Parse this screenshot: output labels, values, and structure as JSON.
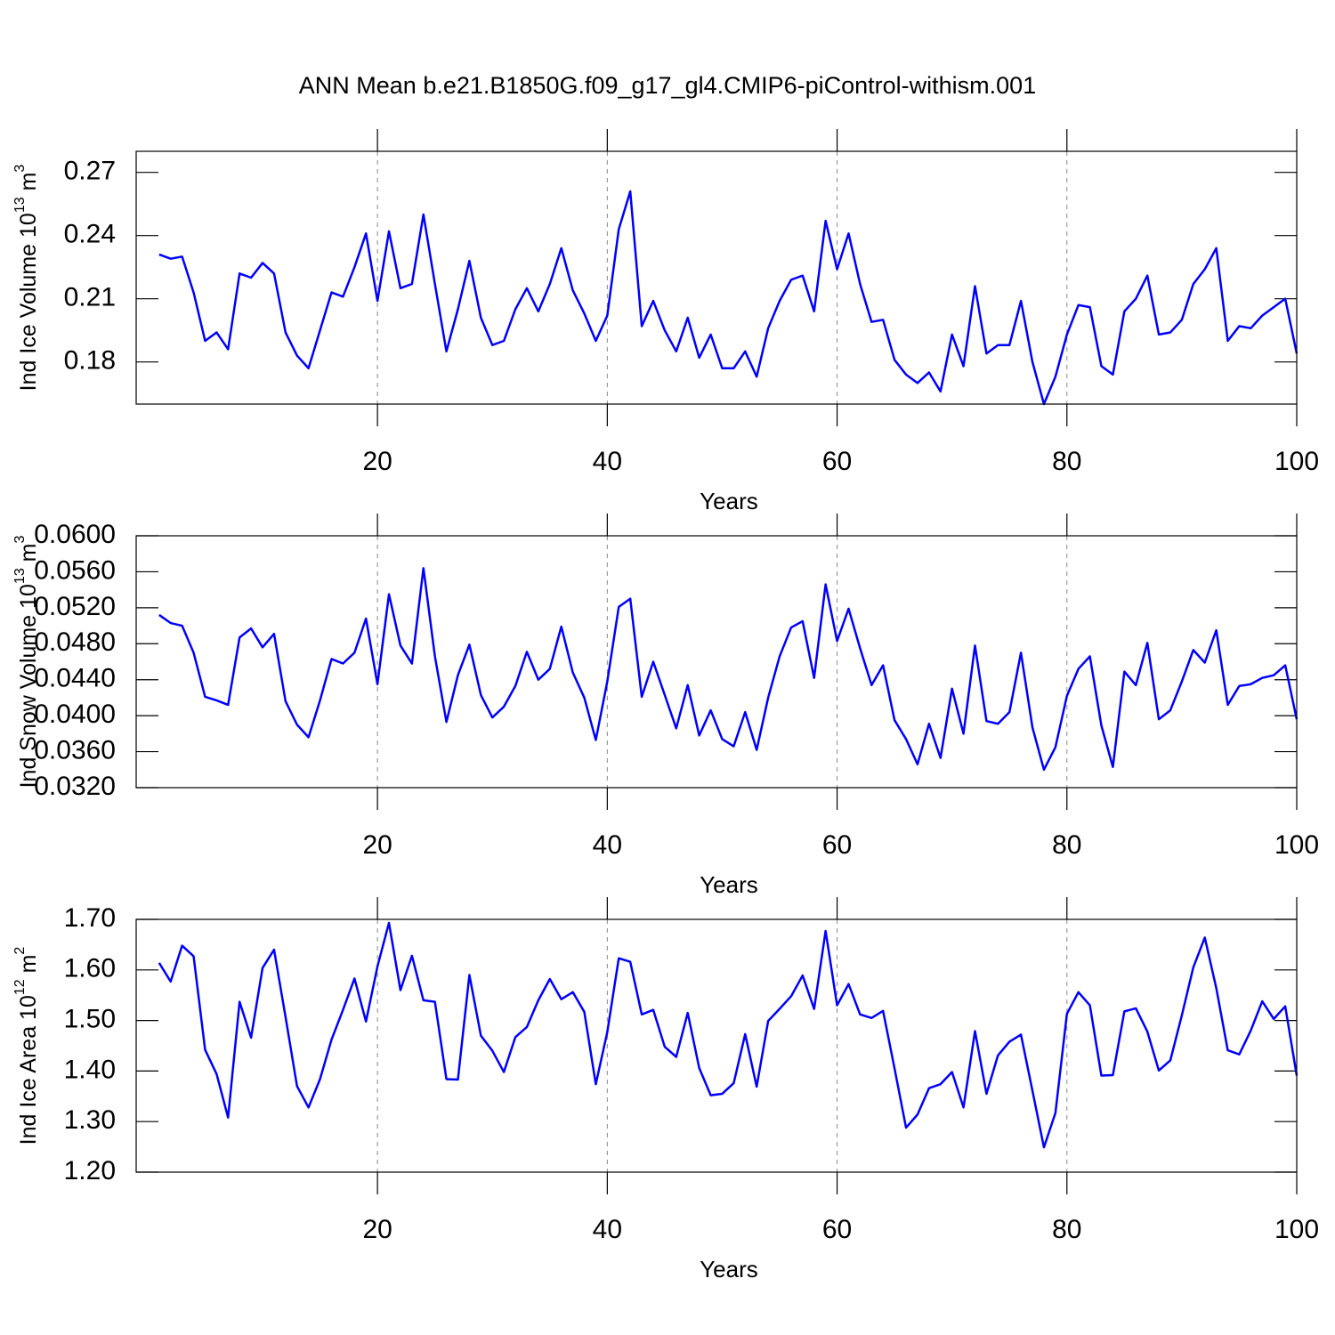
{
  "title": "ANN Mean b.e21.B1850G.f09_g17_gl4.CMIP6-piControl-withism.001",
  "chart_data": [
    {
      "type": "line",
      "ylabel": [
        "Ind Ice Volume 10",
        "13",
        " m",
        "3"
      ],
      "xlabel": "Years",
      "xlim": [
        -1,
        100
      ],
      "xticks": [
        20,
        40,
        60,
        80,
        100
      ],
      "ylim": [
        0.16,
        0.28
      ],
      "yticks": [
        0.18,
        0.21,
        0.24,
        0.27
      ],
      "grid": true,
      "x": [
        1,
        2,
        3,
        4,
        5,
        6,
        7,
        8,
        9,
        10,
        11,
        12,
        13,
        14,
        15,
        16,
        17,
        18,
        19,
        20,
        21,
        22,
        23,
        24,
        25,
        26,
        27,
        28,
        29,
        30,
        31,
        32,
        33,
        34,
        35,
        36,
        37,
        38,
        39,
        40,
        41,
        42,
        43,
        44,
        45,
        46,
        47,
        48,
        49,
        50,
        51,
        52,
        53,
        54,
        55,
        56,
        57,
        58,
        59,
        60,
        61,
        62,
        63,
        64,
        65,
        66,
        67,
        68,
        69,
        70,
        71,
        72,
        73,
        74,
        75,
        76,
        77,
        78,
        79,
        80,
        81,
        82,
        83,
        84,
        85,
        86,
        87,
        88,
        89,
        90,
        91,
        92,
        93,
        94,
        95,
        96,
        97,
        98,
        99,
        100
      ],
      "series": [
        {
          "color": "#0000ff",
          "values": [
            0.231,
            0.229,
            0.23,
            0.213,
            0.19,
            0.194,
            0.186,
            0.222,
            0.22,
            0.227,
            0.222,
            0.194,
            0.183,
            0.177,
            0.195,
            0.213,
            0.211,
            0.225,
            0.241,
            0.209,
            0.242,
            0.215,
            0.217,
            0.25,
            0.217,
            0.185,
            0.205,
            0.228,
            0.201,
            0.188,
            0.19,
            0.205,
            0.215,
            0.204,
            0.217,
            0.234,
            0.214,
            0.203,
            0.19,
            0.202,
            0.243,
            0.261,
            0.197,
            0.209,
            0.195,
            0.185,
            0.201,
            0.182,
            0.193,
            0.177,
            0.177,
            0.185,
            0.173,
            0.196,
            0.209,
            0.219,
            0.221,
            0.204,
            0.247,
            0.224,
            0.241,
            0.217,
            0.199,
            0.2,
            0.181,
            0.174,
            0.17,
            0.175,
            0.166,
            0.193,
            0.178,
            0.216,
            0.184,
            0.188,
            0.188,
            0.209,
            0.18,
            0.16,
            0.173,
            0.193,
            0.207,
            0.206,
            0.178,
            0.174,
            0.204,
            0.21,
            0.221,
            0.193,
            0.194,
            0.2,
            0.217,
            0.224,
            0.234,
            0.19,
            0.197,
            0.196,
            0.202,
            0.206,
            0.21,
            0.184
          ]
        }
      ]
    },
    {
      "type": "line",
      "ylabel": [
        "Ind Snow Volume 10",
        "13",
        " m",
        "3"
      ],
      "xlabel": "Years",
      "xlim": [
        -1,
        100
      ],
      "xticks": [
        20,
        40,
        60,
        80,
        100
      ],
      "ylim": [
        0.032,
        0.06
      ],
      "yticks": [
        {
          "value": 0.032,
          "label": "0.0320"
        },
        {
          "value": 0.036,
          "label": "0.0360"
        },
        {
          "value": 0.04,
          "label": "0.0400"
        },
        {
          "value": 0.044,
          "label": "0.0440"
        },
        {
          "value": 0.048,
          "label": "0.0480"
        },
        {
          "value": 0.052,
          "label": "0.0520"
        },
        {
          "value": 0.056,
          "label": "0.0560"
        },
        {
          "value": 0.06,
          "label": "0.0600"
        }
      ],
      "grid": true,
      "x": [
        1,
        2,
        3,
        4,
        5,
        6,
        7,
        8,
        9,
        10,
        11,
        12,
        13,
        14,
        15,
        16,
        17,
        18,
        19,
        20,
        21,
        22,
        23,
        24,
        25,
        26,
        27,
        28,
        29,
        30,
        31,
        32,
        33,
        34,
        35,
        36,
        37,
        38,
        39,
        40,
        41,
        42,
        43,
        44,
        45,
        46,
        47,
        48,
        49,
        50,
        51,
        52,
        53,
        54,
        55,
        56,
        57,
        58,
        59,
        60,
        61,
        62,
        63,
        64,
        65,
        66,
        67,
        68,
        69,
        70,
        71,
        72,
        73,
        74,
        75,
        76,
        77,
        78,
        79,
        80,
        81,
        82,
        83,
        84,
        85,
        86,
        87,
        88,
        89,
        90,
        91,
        92,
        93,
        94,
        95,
        96,
        97,
        98,
        99,
        100
      ],
      "series": [
        {
          "color": "#0000ff",
          "values": [
            0.0512,
            0.0503,
            0.05,
            0.047,
            0.0421,
            0.0417,
            0.0412,
            0.0487,
            0.0497,
            0.0476,
            0.0491,
            0.0416,
            0.039,
            0.0376,
            0.0417,
            0.0463,
            0.0458,
            0.047,
            0.0508,
            0.0435,
            0.0535,
            0.0478,
            0.0458,
            0.0564,
            0.0466,
            0.0393,
            0.0445,
            0.0479,
            0.0423,
            0.0398,
            0.041,
            0.0433,
            0.0471,
            0.044,
            0.0452,
            0.0499,
            0.0448,
            0.042,
            0.0373,
            0.0438,
            0.0521,
            0.053,
            0.0421,
            0.046,
            0.0423,
            0.0386,
            0.0434,
            0.0378,
            0.0406,
            0.0374,
            0.0366,
            0.0404,
            0.0362,
            0.042,
            0.0466,
            0.0498,
            0.0505,
            0.0442,
            0.0546,
            0.0483,
            0.0519,
            0.0475,
            0.0434,
            0.0456,
            0.0395,
            0.0374,
            0.0346,
            0.0391,
            0.0353,
            0.043,
            0.038,
            0.0478,
            0.0394,
            0.0391,
            0.0404,
            0.047,
            0.0387,
            0.034,
            0.0365,
            0.0422,
            0.0452,
            0.0466,
            0.0389,
            0.0343,
            0.0449,
            0.0434,
            0.0481,
            0.0396,
            0.0406,
            0.0438,
            0.0473,
            0.0459,
            0.0495,
            0.0412,
            0.0433,
            0.0435,
            0.0442,
            0.0445,
            0.0456,
            0.0396
          ]
        }
      ]
    },
    {
      "type": "line",
      "ylabel": [
        "Ind Ice Area 10",
        "12",
        " m",
        "2"
      ],
      "xlabel": "Years",
      "xlim": [
        -1,
        100
      ],
      "xticks": [
        20,
        40,
        60,
        80,
        100
      ],
      "ylim": [
        1.2,
        1.7
      ],
      "yticks": [
        {
          "value": 1.2,
          "label": "1.20"
        },
        {
          "value": 1.3,
          "label": "1.30"
        },
        {
          "value": 1.4,
          "label": "1.40"
        },
        {
          "value": 1.5,
          "label": "1.50"
        },
        {
          "value": 1.6,
          "label": "1.60"
        },
        {
          "value": 1.7,
          "label": "1.70"
        }
      ],
      "grid": true,
      "x": [
        1,
        2,
        3,
        4,
        5,
        6,
        7,
        8,
        9,
        10,
        11,
        12,
        13,
        14,
        15,
        16,
        17,
        18,
        19,
        20,
        21,
        22,
        23,
        24,
        25,
        26,
        27,
        28,
        29,
        30,
        31,
        32,
        33,
        34,
        35,
        36,
        37,
        38,
        39,
        40,
        41,
        42,
        43,
        44,
        45,
        46,
        47,
        48,
        49,
        50,
        51,
        52,
        53,
        54,
        55,
        56,
        57,
        58,
        59,
        60,
        61,
        62,
        63,
        64,
        65,
        66,
        67,
        68,
        69,
        70,
        71,
        72,
        73,
        74,
        75,
        76,
        77,
        78,
        79,
        80,
        81,
        82,
        83,
        84,
        85,
        86,
        87,
        88,
        89,
        90,
        91,
        92,
        93,
        94,
        95,
        96,
        97,
        98,
        99,
        100
      ],
      "series": [
        {
          "color": "#0000ff",
          "values": [
            1.614,
            1.577,
            1.648,
            1.627,
            1.442,
            1.394,
            1.308,
            1.537,
            1.466,
            1.604,
            1.64,
            1.507,
            1.37,
            1.328,
            1.384,
            1.462,
            1.521,
            1.583,
            1.498,
            1.607,
            1.693,
            1.56,
            1.628,
            1.54,
            1.537,
            1.384,
            1.383,
            1.59,
            1.47,
            1.44,
            1.398,
            1.467,
            1.487,
            1.54,
            1.582,
            1.542,
            1.556,
            1.517,
            1.374,
            1.477,
            1.623,
            1.616,
            1.512,
            1.521,
            1.448,
            1.428,
            1.515,
            1.406,
            1.352,
            1.355,
            1.376,
            1.473,
            1.369,
            1.499,
            1.523,
            1.548,
            1.589,
            1.523,
            1.677,
            1.53,
            1.572,
            1.512,
            1.505,
            1.519,
            1.405,
            1.288,
            1.314,
            1.366,
            1.374,
            1.398,
            1.328,
            1.479,
            1.355,
            1.431,
            1.458,
            1.472,
            1.361,
            1.249,
            1.317,
            1.513,
            1.556,
            1.53,
            1.391,
            1.392,
            1.518,
            1.524,
            1.478,
            1.401,
            1.421,
            1.51,
            1.605,
            1.664,
            1.564,
            1.441,
            1.433,
            1.48,
            1.538,
            1.503,
            1.528,
            1.391
          ]
        }
      ]
    }
  ]
}
